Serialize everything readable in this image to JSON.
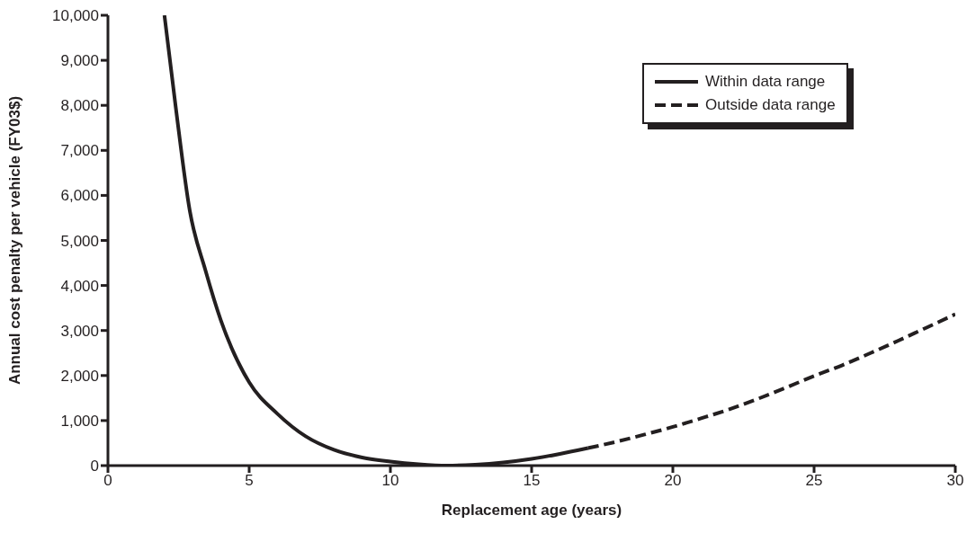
{
  "chart_data": {
    "type": "line",
    "xlabel": "Replacement age (years)",
    "ylabel": "Annual cost penalty per vehicle (FY03$)",
    "xlim": [
      0,
      30
    ],
    "xticks": [
      0,
      5,
      10,
      15,
      20,
      25,
      30
    ],
    "ylim": [
      0,
      10000
    ],
    "yticks": [
      {
        "value": 0,
        "label": "0"
      },
      {
        "value": 1000,
        "label": "1,000"
      },
      {
        "value": 2000,
        "label": "2,000"
      },
      {
        "value": 3000,
        "label": "3,000"
      },
      {
        "value": 4000,
        "label": "4,000"
      },
      {
        "value": 5000,
        "label": "5,000"
      },
      {
        "value": 6000,
        "label": "6,000"
      },
      {
        "value": 7000,
        "label": "7,000"
      },
      {
        "value": 8000,
        "label": "8,000"
      },
      {
        "value": 9000,
        "label": "9,000"
      },
      {
        "value": 10000,
        "label": "10,000"
      }
    ],
    "grid": false,
    "legend": "top right",
    "marker": "none",
    "series": [
      {
        "name": "Within data range",
        "color": "#231f20",
        "line_style": "solid",
        "x": [
          2,
          2.4,
          2.9,
          3.45,
          4,
          5,
          6,
          7,
          8,
          9,
          10,
          11,
          12,
          13,
          14,
          15,
          16,
          17
        ],
        "values": [
          10000,
          7960,
          5650,
          4340,
          3220,
          1850,
          1150,
          650,
          350,
          180,
          90,
          30,
          0,
          20,
          70,
          150,
          260,
          390
        ]
      },
      {
        "name": "Outside data range",
        "color": "#231f20",
        "line_style": "dashed",
        "x": [
          17,
          18,
          19,
          20,
          21,
          22,
          23,
          24,
          25,
          26,
          27,
          28,
          29,
          30
        ],
        "values": [
          390,
          530,
          690,
          860,
          1050,
          1250,
          1480,
          1730,
          1990,
          2230,
          2500,
          2780,
          3070,
          3360
        ]
      }
    ]
  }
}
